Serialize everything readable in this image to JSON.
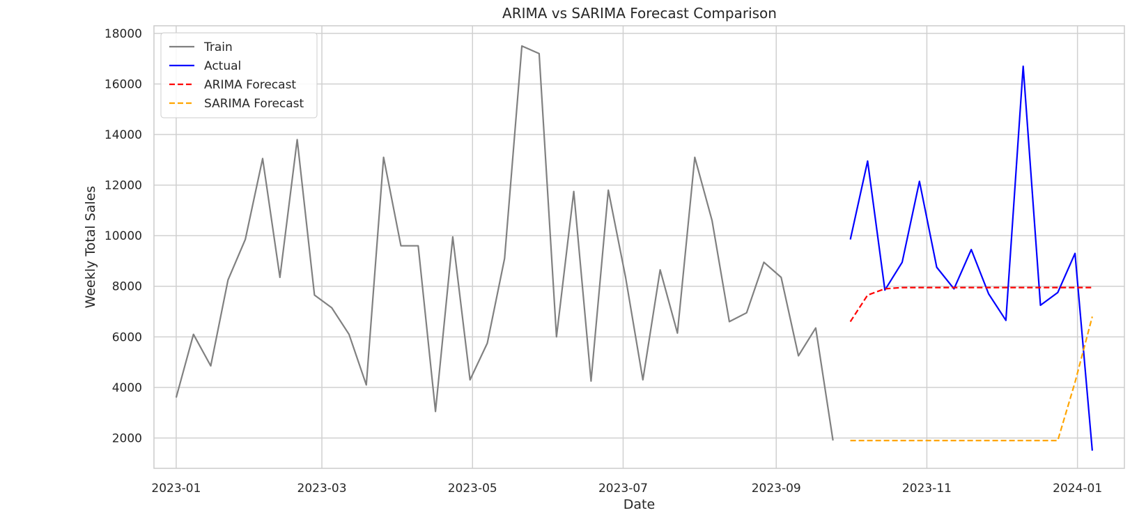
{
  "chart_data": {
    "type": "line",
    "title": "ARIMA vs SARIMA Forecast Comparison",
    "xlabel": "Date",
    "ylabel": "Weekly Total Sales",
    "xlim": [
      "2022-12-23",
      "2024-01-20"
    ],
    "ylim": [
      800,
      18300
    ],
    "x_ticks": [
      {
        "date": "2023-01-01",
        "label": "2023-01"
      },
      {
        "date": "2023-03-01",
        "label": "2023-03"
      },
      {
        "date": "2023-05-01",
        "label": "2023-05"
      },
      {
        "date": "2023-07-01",
        "label": "2023-07"
      },
      {
        "date": "2023-09-01",
        "label": "2023-09"
      },
      {
        "date": "2023-11-01",
        "label": "2023-11"
      },
      {
        "date": "2024-01-01",
        "label": "2024-01"
      }
    ],
    "y_ticks": [
      2000,
      4000,
      6000,
      8000,
      10000,
      12000,
      14000,
      16000,
      18000
    ],
    "grid": true,
    "legend_position": "top-left",
    "series": [
      {
        "name": "Train",
        "color": "#808080",
        "style": "solid",
        "x": [
          "2023-01-01",
          "2023-01-08",
          "2023-01-15",
          "2023-01-22",
          "2023-01-29",
          "2023-02-05",
          "2023-02-12",
          "2023-02-19",
          "2023-02-26",
          "2023-03-05",
          "2023-03-12",
          "2023-03-19",
          "2023-03-26",
          "2023-04-02",
          "2023-04-09",
          "2023-04-16",
          "2023-04-23",
          "2023-04-30",
          "2023-05-07",
          "2023-05-14",
          "2023-05-21",
          "2023-05-28",
          "2023-06-04",
          "2023-06-11",
          "2023-06-18",
          "2023-06-25",
          "2023-07-02",
          "2023-07-09",
          "2023-07-16",
          "2023-07-23",
          "2023-07-30",
          "2023-08-06",
          "2023-08-13",
          "2023-08-20",
          "2023-08-27",
          "2023-09-03",
          "2023-09-10",
          "2023-09-17",
          "2023-09-24"
        ],
        "values": [
          3600,
          6100,
          4850,
          8250,
          9850,
          13050,
          8350,
          13800,
          7650,
          7150,
          6100,
          4100,
          13100,
          9600,
          9600,
          3050,
          9950,
          4300,
          5750,
          9100,
          17500,
          17200,
          6000,
          11750,
          4250,
          11800,
          8350,
          4300,
          8650,
          6150,
          13100,
          10600,
          6600,
          6950,
          8950,
          8350,
          5250,
          6350,
          1900
        ]
      },
      {
        "name": "Actual",
        "color": "#0000ff",
        "style": "solid",
        "x": [
          "2023-10-01",
          "2023-10-08",
          "2023-10-15",
          "2023-10-22",
          "2023-10-29",
          "2023-11-05",
          "2023-11-12",
          "2023-11-19",
          "2023-11-26",
          "2023-12-03",
          "2023-12-10",
          "2023-12-17",
          "2023-12-24",
          "2023-12-31",
          "2024-01-07"
        ],
        "values": [
          9850,
          12950,
          7850,
          8950,
          12150,
          8750,
          7900,
          9450,
          7700,
          6650,
          16700,
          7250,
          7750,
          9300,
          1500
        ]
      },
      {
        "name": "ARIMA Forecast",
        "color": "#ff0000",
        "style": "dashed",
        "x": [
          "2023-10-01",
          "2023-10-08",
          "2023-10-15",
          "2023-10-22",
          "2023-10-29",
          "2023-11-05",
          "2023-11-12",
          "2023-11-19",
          "2023-11-26",
          "2023-12-03",
          "2023-12-10",
          "2023-12-17",
          "2023-12-24",
          "2023-12-31",
          "2024-01-07"
        ],
        "values": [
          6600,
          7650,
          7900,
          7950,
          7950,
          7950,
          7950,
          7950,
          7950,
          7950,
          7950,
          7950,
          7950,
          7950,
          7950
        ]
      },
      {
        "name": "SARIMA Forecast",
        "color": "#ffa500",
        "style": "dashed",
        "x": [
          "2023-10-01",
          "2023-10-08",
          "2023-10-15",
          "2023-10-22",
          "2023-10-29",
          "2023-11-05",
          "2023-11-12",
          "2023-11-19",
          "2023-11-26",
          "2023-12-03",
          "2023-12-10",
          "2023-12-17",
          "2023-12-24",
          "2023-12-31",
          "2024-01-07"
        ],
        "values": [
          1900,
          1900,
          1900,
          1900,
          1900,
          1900,
          1900,
          1900,
          1900,
          1900,
          1900,
          1900,
          1900,
          4200,
          6800
        ]
      }
    ]
  }
}
